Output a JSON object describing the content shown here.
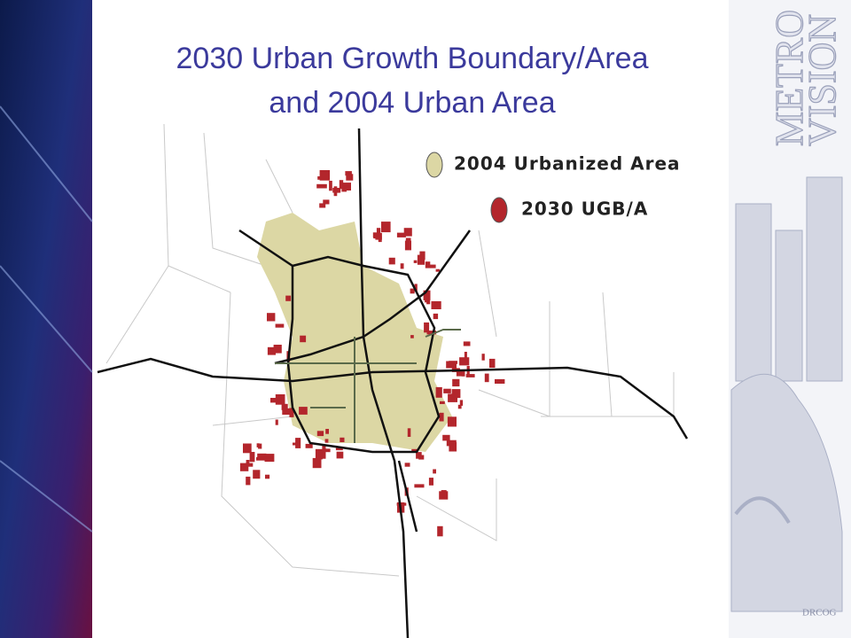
{
  "title": {
    "line1": "2030 Urban Growth Boundary/Area",
    "line2": "and 2004 Urban Area"
  },
  "legend": [
    {
      "label": "2004 Urbanized Area",
      "color": "#dcd7a4"
    },
    {
      "label": "2030 UGB/A",
      "color": "#b3262c"
    }
  ],
  "logo": {
    "line1": "METRO",
    "line2": "VISION",
    "footer": "DRCOG"
  }
}
